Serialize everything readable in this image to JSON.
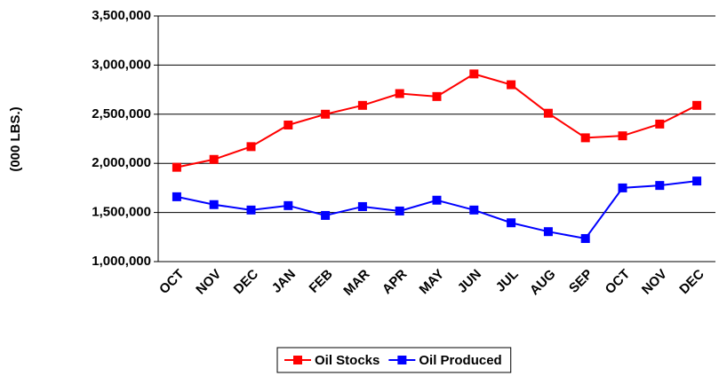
{
  "chart_data": {
    "type": "line",
    "y_label": "(000 LBS.)",
    "categories": [
      "OCT",
      "NOV",
      "DEC",
      "JAN",
      "FEB",
      "MAR",
      "APR",
      "MAY",
      "JUN",
      "JUL",
      "AUG",
      "SEP",
      "OCT",
      "NOV",
      "DEC"
    ],
    "series": [
      {
        "name": "Oil Stocks",
        "color": "#ff0000",
        "values": [
          1960000,
          2040000,
          2170000,
          2390000,
          2500000,
          2590000,
          2710000,
          2680000,
          2910000,
          2800000,
          2510000,
          2260000,
          2280000,
          2400000,
          2590000
        ]
      },
      {
        "name": "Oil Produced",
        "color": "#0000ff",
        "values": [
          1660000,
          1580000,
          1525000,
          1570000,
          1470000,
          1560000,
          1515000,
          1625000,
          1525000,
          1395000,
          1305000,
          1235000,
          1750000,
          1775000,
          1820000
        ]
      }
    ],
    "ylim": [
      1000000,
      3500000
    ],
    "yticks": [
      {
        "value": 1000000,
        "label": "1,000,000"
      },
      {
        "value": 1500000,
        "label": "1,500,000"
      },
      {
        "value": 2000000,
        "label": "2,000,000"
      },
      {
        "value": 2500000,
        "label": "2,500,000"
      },
      {
        "value": 3000000,
        "label": "3,000,000"
      },
      {
        "value": 3500000,
        "label": "3,500,000"
      }
    ],
    "grid": true,
    "legend": "bottom"
  }
}
